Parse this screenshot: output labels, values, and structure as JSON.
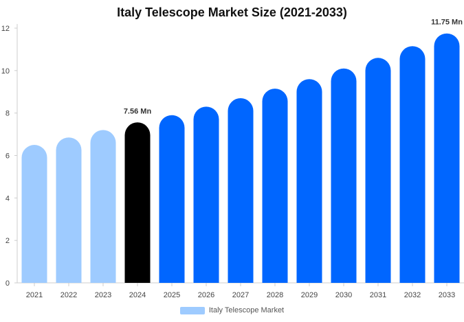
{
  "chart_data": {
    "type": "bar",
    "title": "Italy Telescope Market Size (2021-2033)",
    "categories": [
      "2021",
      "2022",
      "2023",
      "2024",
      "2025",
      "2026",
      "2027",
      "2028",
      "2029",
      "2030",
      "2031",
      "2032",
      "2033"
    ],
    "values": [
      6.5,
      6.85,
      7.2,
      7.56,
      7.9,
      8.3,
      8.7,
      9.15,
      9.6,
      10.1,
      10.6,
      11.15,
      11.75
    ],
    "data_labels": [
      {
        "index": 3,
        "text": "7.56 Mn"
      },
      {
        "index": 12,
        "text": "11.75 Mn"
      }
    ],
    "ylim": [
      0,
      12
    ],
    "yticks": [
      0,
      2,
      4,
      6,
      8,
      10,
      12
    ],
    "xlabel": "",
    "ylabel": "",
    "grid": false,
    "legend": {
      "label": "Italy Telescope Market",
      "placement": "bottom-center"
    },
    "colors": {
      "historical": "#9ecbff",
      "base_year": "#000000",
      "forecast": "#0066ff",
      "legend_swatch": "#9ecbff",
      "axis": "#cccccc"
    },
    "bar_color_groups": [
      "historical",
      "historical",
      "historical",
      "base_year",
      "forecast",
      "forecast",
      "forecast",
      "forecast",
      "forecast",
      "forecast",
      "forecast",
      "forecast",
      "forecast"
    ]
  }
}
